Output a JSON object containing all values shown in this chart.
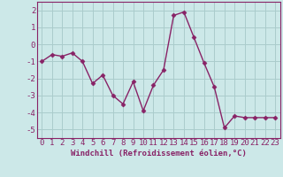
{
  "x": [
    0,
    1,
    2,
    3,
    4,
    5,
    6,
    7,
    8,
    9,
    10,
    11,
    12,
    13,
    14,
    15,
    16,
    17,
    18,
    19,
    20,
    21,
    22,
    23
  ],
  "y": [
    -1.0,
    -0.6,
    -0.7,
    -0.5,
    -1.0,
    -2.3,
    -1.8,
    -3.0,
    -3.5,
    -2.2,
    -3.9,
    -2.4,
    -1.5,
    1.7,
    1.9,
    0.4,
    -1.1,
    -2.5,
    -4.9,
    -4.2,
    -4.3,
    -4.3,
    -4.3,
    -4.3
  ],
  "line_color": "#882266",
  "marker": "D",
  "marker_size": 2.5,
  "bg_color": "#cce8e8",
  "grid_color": "#aacccc",
  "tick_color": "#882266",
  "label_color": "#882266",
  "xlabel": "Windchill (Refroidissement éolien,°C)",
  "ylim": [
    -5.5,
    2.5
  ],
  "xlim": [
    -0.5,
    23.5
  ],
  "yticks": [
    2,
    1,
    0,
    -1,
    -2,
    -3,
    -4,
    -5
  ],
  "xticks": [
    0,
    1,
    2,
    3,
    4,
    5,
    6,
    7,
    8,
    9,
    10,
    11,
    12,
    13,
    14,
    15,
    16,
    17,
    18,
    19,
    20,
    21,
    22,
    23
  ],
  "xlabel_fontsize": 6.5,
  "tick_fontsize": 6.5,
  "linewidth": 1.0
}
